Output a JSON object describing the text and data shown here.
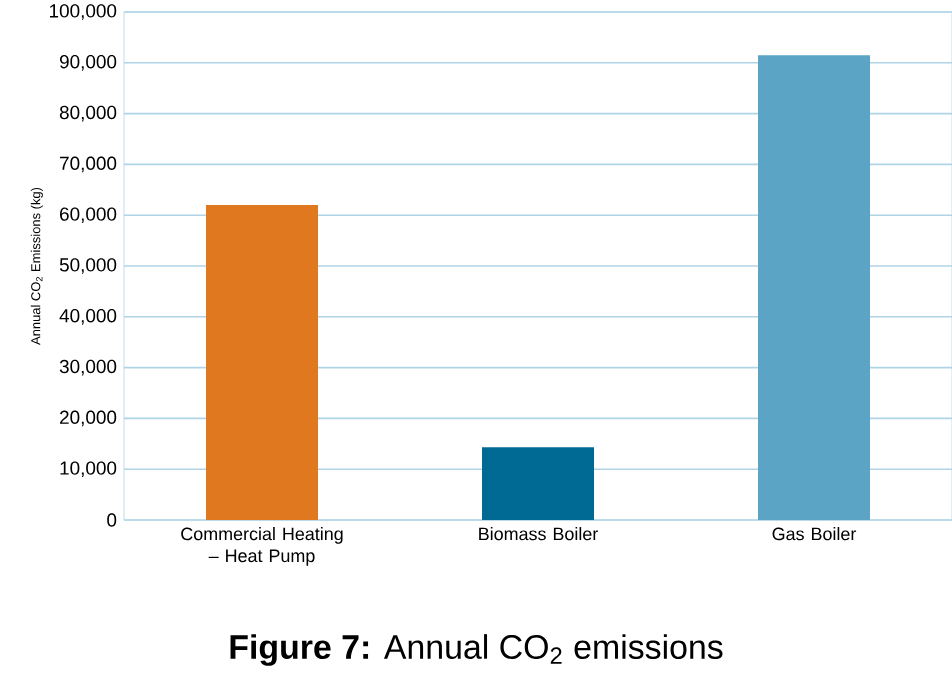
{
  "chart_data": {
    "type": "bar",
    "title": "**Figure 7:** Annual CO$_{2}$ emissions",
    "ylabel": "Annual CO$_{2}$ Emissions (kg)",
    "categories": [
      "Commercial Heating – Heat Pump",
      "Biomass Boiler",
      "Gas Boiler"
    ],
    "values": [
      62000,
      14300,
      91500
    ],
    "colors": [
      "#e07820",
      "#006a94",
      "#5ba4c6"
    ],
    "ylim": [
      0,
      100000
    ],
    "yticks": [
      {
        "value": 0,
        "label": "0"
      },
      {
        "value": 10000,
        "label": "10,000"
      },
      {
        "value": 20000,
        "label": "20,000"
      },
      {
        "value": 30000,
        "label": "30,000"
      },
      {
        "value": 40000,
        "label": "40,000"
      },
      {
        "value": 50000,
        "label": "50,000"
      },
      {
        "value": 60000,
        "label": "60,000"
      },
      {
        "value": 70000,
        "label": "70,000"
      },
      {
        "value": 80000,
        "label": "80,000"
      },
      {
        "value": 90000,
        "label": "90,000"
      },
      {
        "value": 100000,
        "label": "100,000"
      }
    ],
    "grid": "y"
  }
}
